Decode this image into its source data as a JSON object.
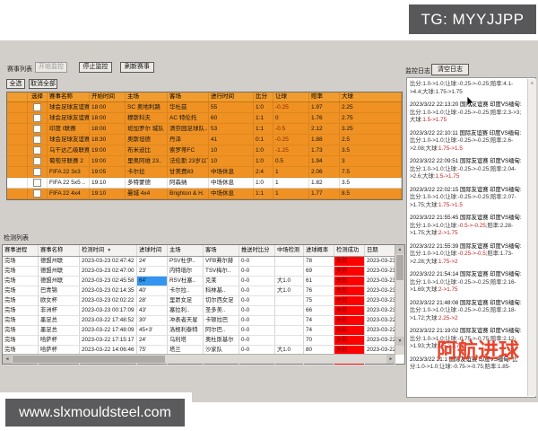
{
  "overlays": {
    "tg_badge": "TG: MYYJJPP",
    "site_badge": "www.slxmouldsteel.com",
    "watermark": "阿航进球"
  },
  "icons": {
    "scroll_up": "▲",
    "scroll_down": "▼",
    "scroll_left": "◄",
    "scroll_right": "►",
    "sort_desc": "▼",
    "log_scroll_up": "∧",
    "checkbox": "checkbox-unchecked",
    "cursor": "mouse-arrow"
  },
  "colors": {
    "row_orange": "#ef9223",
    "header_orange": "#f0a93a",
    "alert_red": "#ff0000",
    "alert_text": "#7e0000",
    "selected_blue": "#3296f0",
    "log_red": "#c22020",
    "badge_bg": "#58585a",
    "watermark_red": "#e8442c",
    "window_gray": "#d2cfca"
  },
  "match_panel": {
    "title": "赛事列表",
    "buttons": {
      "start": "开始监控",
      "stop": "停止监控",
      "refresh": "刷新赛事",
      "select_all": "全选",
      "cancel_all": "取消全部"
    },
    "table": {
      "headers": [
        "选择",
        "赛事名称",
        "开始时间",
        "主场",
        "客场",
        "进行时间",
        "比分",
        "让球",
        "赔率",
        "大球"
      ],
      "rows": [
        {
          "league": "球会足球友谊赛",
          "start": "18:00",
          "home": "SC 奥地利路",
          "away": "华杜兹",
          "elapsed": "55",
          "score": "1:0",
          "handicap": "-0.25",
          "odds": "1.97",
          "over": "2.25",
          "white": false
        },
        {
          "league": "球会足球友谊赛",
          "start": "18:00",
          "home": "穆斯科夫",
          "away": "AC 特伦托",
          "elapsed": "60",
          "score": "1:1",
          "handicap": "0",
          "odds": "1.76",
          "over": "2.75",
          "white": false
        },
        {
          "league": "印度 I联赛",
          "start": "18:00",
          "home": "班加罗尔 城队",
          "away": "清奈园足球队..",
          "elapsed": "53",
          "score": "1:1",
          "handicap": "-0.5",
          "odds": "2.12",
          "over": "3.25",
          "white": false
        },
        {
          "league": "球会足球友谊赛",
          "start": "18:30",
          "home": "奥斯坦德",
          "away": "丹泽",
          "elapsed": "41",
          "score": "0:1",
          "handicap": "-0.25",
          "odds": "1.88",
          "over": "2.5",
          "white": false
        },
        {
          "league": "乌干达乙级联赛",
          "start": "19:00",
          "home": "布米迪比",
          "away": "索罗蒂FC",
          "elapsed": "10",
          "score": "1:0",
          "handicap": "-1.25",
          "odds": "1.73",
          "over": "3.5",
          "white": false
        },
        {
          "league": "葡萄牙联赛 2",
          "start": "19:00",
          "home": "里奥阿维 23..",
          "away": "法伦斯 23岁以下",
          "elapsed": "10",
          "score": "1:0",
          "handicap": "0.5",
          "odds": "1.94",
          "over": "3",
          "white": false
        },
        {
          "league": "FIFA 22 3x3",
          "start": "19:05",
          "home": "卡尔拉",
          "away": "甘美费83",
          "elapsed": "中场休息",
          "score": "2:4",
          "handicap": "1",
          "odds": "2.06",
          "over": "7.5",
          "white": false
        },
        {
          "league": "FIFA 22 5x5 ..",
          "start": "19:10",
          "home": "多特蒙德",
          "away": "阿森纳",
          "elapsed": "中场休息",
          "score": "1:0",
          "handicap": "1",
          "odds": "1.82",
          "over": "3.5",
          "white": true
        },
        {
          "league": "FIFA 22 4x4",
          "start": "19:10",
          "home": "曼城 4x4",
          "away": "Brighton & H.",
          "elapsed": "中场休息",
          "score": "1:1",
          "handicap": "1",
          "odds": "1.77",
          "over": "8.5",
          "white": false
        }
      ]
    }
  },
  "detect_panel": {
    "title": "检测列表",
    "table": {
      "headers": [
        "赛事进程",
        "赛事名称",
        "检测时间",
        "进球时间",
        "主场",
        "客场",
        "推送时比分",
        "中场检测",
        "进球概率",
        "检测成功",
        "日期"
      ],
      "sorted_column": "检测时间",
      "rows": [
        {
          "state": "完场",
          "league": "德盟州联",
          "time": "2023-03-23 02:47:42",
          "goal": "24'",
          "home": "PSV杜伊..",
          "away": "VFB弗尔赫",
          "score": "0-0",
          "half": "",
          "prob": "78",
          "result": "失败",
          "date": "2023-03-23",
          "goal_selected": false
        },
        {
          "state": "完场",
          "league": "德盟州联",
          "time": "2023-03-23 02:47:00",
          "goal": "23'",
          "home": "内特瑙尔",
          "away": "TSV梅尔..",
          "score": "0-0",
          "half": "",
          "prob": "69",
          "result": "失败",
          "date": "2023-03-23",
          "goal_selected": false
        },
        {
          "state": "完场",
          "league": "德盟州联",
          "time": "2023-03-23 02:45:58",
          "goal": "64'",
          "home": "RSV杜塞..",
          "away": "克莱",
          "score": "0-0",
          "half": "大1.0",
          "prob": "61",
          "result": "失败",
          "date": "2023-03-23",
          "goal_selected": true
        },
        {
          "state": "完场",
          "league": "巴青锦",
          "time": "2023-03-23 02:14:35",
          "goal": "40'",
          "home": "卡尔拉..",
          "away": "科林基..",
          "score": "0-0",
          "half": "大1.0",
          "prob": "76",
          "result": "失败",
          "date": "2023-03-23",
          "goal_selected": false
        },
        {
          "state": "完场",
          "league": "欧女杯",
          "time": "2023-03-23 02:02:22",
          "goal": "28'",
          "home": "里昂女足",
          "away": "切尔西女足",
          "score": "0-0",
          "half": "",
          "prob": "75",
          "result": "失败",
          "date": "2023-03-23",
          "goal_selected": false
        },
        {
          "state": "完场",
          "league": "非洲杯",
          "time": "2023-03-23 00:17:09",
          "goal": "43'",
          "home": "塞拉利..",
          "away": "圣多美..",
          "score": "0-0",
          "half": "",
          "prob": "66",
          "result": "失败",
          "date": "2023-03-23",
          "goal_selected": false
        },
        {
          "state": "完场",
          "league": "墨足总",
          "time": "2023-03-22 17:48:52",
          "goal": "30'",
          "home": "冲表者天星",
          "away": "卡顿拉巴",
          "score": "0-0",
          "half": "",
          "prob": "74",
          "result": "失败",
          "date": "2023-03-22",
          "goal_selected": false
        },
        {
          "state": "完场",
          "league": "墨足总",
          "time": "2023-03-22 17:48:09",
          "goal": "45+3'",
          "home": "洛根利泰特",
          "away": "阿尔巴..",
          "score": "0-0",
          "half": "",
          "prob": "74",
          "result": "失败",
          "date": "2023-03-22",
          "goal_selected": false
        },
        {
          "state": "完场",
          "league": "哈萨杯",
          "time": "2023-03-22 17:15:17",
          "goal": "24'",
          "home": "乌利塔",
          "away": "奥杜斯基尔",
          "score": "0-0",
          "half": "",
          "prob": "70",
          "result": "失败",
          "date": "2023-03-22",
          "goal_selected": false
        },
        {
          "state": "完场",
          "league": "哈萨杯",
          "time": "2023-03-22 14:06:46",
          "goal": "75'",
          "home": "塔兰",
          "away": "沙家队",
          "score": "0-0",
          "half": "大1.0",
          "prob": "80",
          "result": "失败",
          "date": "2023-03-22",
          "goal_selected": false
        },
        {
          "state": "完场",
          "league": "欧女杯",
          "time": "2023-03-22 04:15:05",
          "goal": "33'",
          "home": "罗马FC女足",
          "away": "巴塞罗..",
          "score": "0-0",
          "half": "",
          "prob": "70",
          "result": "失败",
          "date": "2023-03-22",
          "goal_selected": false
        }
      ]
    }
  },
  "log_panel": {
    "title": "监控日志",
    "clear_button": "清空日志",
    "entries": [
      {
        "time": "",
        "match": "",
        "parts": [
          [
            "比分:1.0->1.0;让球:-0.25->-0.25;赔率:4.1->4.4;大球:1.75->1.75",
            false
          ]
        ]
      },
      {
        "time": "2023/3/22 22:13:20",
        "match": "国际友谊赛 印度VS缅甸:",
        "parts": [
          [
            "比分:1.0->1.0;让球:-0.25->-0.25;赔率:2.3->3;大球:",
            false
          ],
          [
            "1.5->1.75",
            true
          ]
        ]
      },
      {
        "time": "2023/3/22 22:10:11",
        "match": "国际友谊赛 印度VS缅甸:",
        "parts": [
          [
            "比分:1.0->1.0;让球:-0.25->-0.25;赔率:2.6->2.08;大球:",
            false
          ],
          [
            "1.75->1.5",
            true
          ]
        ]
      },
      {
        "time": "2023/3/22 22:09:51",
        "match": "国际友谊赛 印度VS缅甸:",
        "parts": [
          [
            "比分:1.0->1.0;让球:-0.25->-0.25;赔率:2.04->2.6;大球:",
            false
          ],
          [
            "1.5->1.75",
            true
          ]
        ]
      },
      {
        "time": "2023/3/22 22:02:15",
        "match": "国际友谊赛 印度VS缅甸:",
        "parts": [
          [
            "比分:1.0->1.0;让球:-0.25->-0.25;赔率:2.07->1.75;大球:",
            false
          ],
          [
            "1.75->1.5",
            true
          ]
        ]
      },
      {
        "time": "2023/3/22 21:55:45",
        "match": "国际友谊赛 印度VS缅甸:",
        "parts": [
          [
            "比分:1.0->1.0;让球:",
            false
          ],
          [
            "-0.5->-0.25",
            true
          ],
          [
            ";赔率:2.28->1.75;大球:",
            false
          ],
          [
            "2->1.75",
            true
          ]
        ]
      },
      {
        "time": "2023/3/22 21:55:39",
        "match": "国际友谊赛 印度VS缅甸:",
        "parts": [
          [
            "比分:1.0->1.0;让球:",
            false
          ],
          [
            "-0.25->-0.5",
            true
          ],
          [
            ";赔率:1.73->2.28;大球:",
            false
          ],
          [
            "1.75->2",
            true
          ]
        ]
      },
      {
        "time": "2023/3/22 21:54:14",
        "match": "国际友谊赛 印度VS缅甸:",
        "parts": [
          [
            "比分:1.0->1.0;让球:-0.25->-0.25;赔率:2.16->1.69;大球:",
            false
          ],
          [
            "2->1.75",
            true
          ]
        ]
      },
      {
        "time": "2023/3/22 21:48:08",
        "match": "国际友谊赛 印度VS缅甸:",
        "parts": [
          [
            "比分:1.0->1.0;让球:-0.25->-0.25;赔率:2.18->1.72;大球:",
            false
          ],
          [
            "2.25->2",
            true
          ]
        ]
      },
      {
        "time": "2023/3/22 21:19:02",
        "match": "国际友谊赛 印度VS缅甸:",
        "parts": [
          [
            "比分:1.0->1.0;让球:-0.75->-0.75;赔率:2.12->1.93;大球:",
            false
          ],
          [
            "1.5->1.75",
            true
          ]
        ]
      },
      {
        "time": "2023/3/22 21:1",
        "match": "国际友谊赛 印度VS缅甸:",
        "parts": [
          [
            "比分:1.0->1.0;让球:-0.75->-0.75;赔率:1.85-",
            false
          ]
        ]
      }
    ]
  }
}
